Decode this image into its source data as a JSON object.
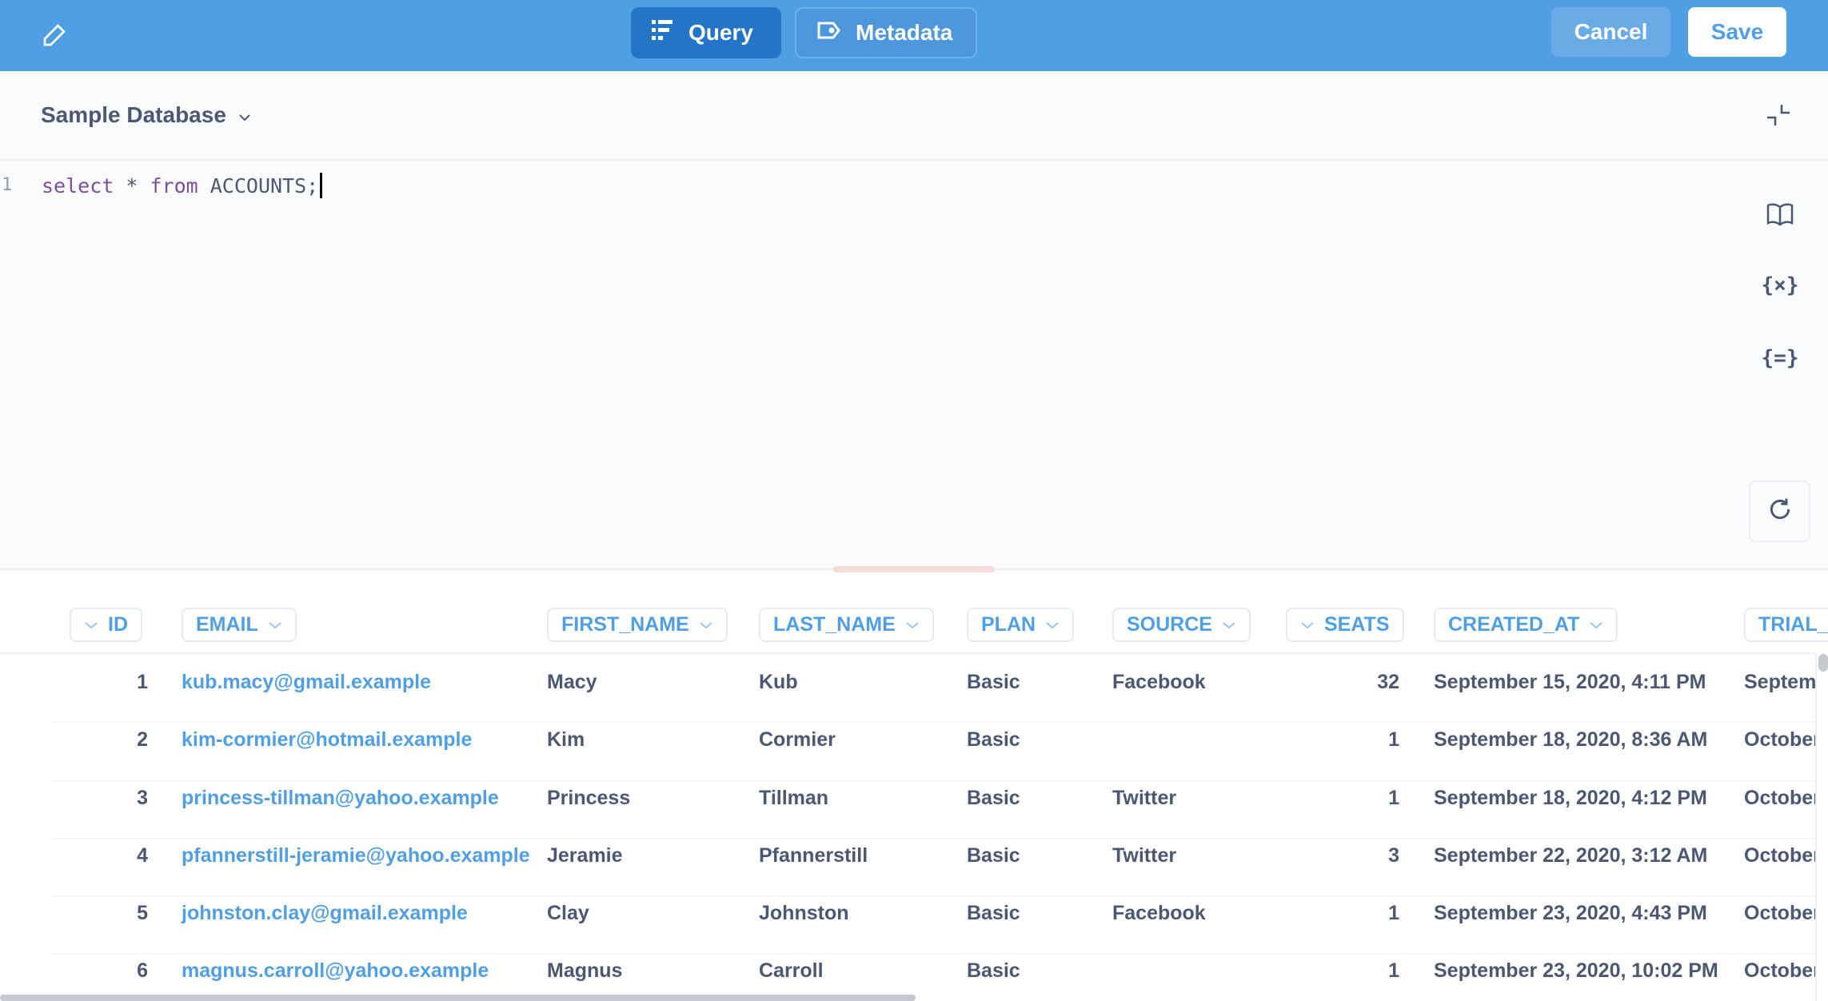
{
  "header": {
    "query_label": "Query",
    "metadata_label": "Metadata",
    "cancel_label": "Cancel",
    "save_label": "Save",
    "accent": "#509ee3"
  },
  "editor": {
    "database": "Sample Database",
    "line_number": "1",
    "code": {
      "kw1": "select",
      "star": " * ",
      "kw2": "from",
      "rest": " ACCOUNTS;"
    },
    "side_icons": [
      "book-icon",
      "variable-icon",
      "snippet-icon",
      "refresh-icon"
    ],
    "var_glyph": "{×}",
    "snippet_glyph": "{=}"
  },
  "table": {
    "columns": [
      "ID",
      "EMAIL",
      "FIRST_NAME",
      "LAST_NAME",
      "PLAN",
      "SOURCE",
      "SEATS",
      "CREATED_AT",
      "TRIAL_E"
    ],
    "rows": [
      [
        "1",
        "kub.macy@gmail.example",
        "Macy",
        "Kub",
        "Basic",
        "Facebook",
        "32",
        "September 15, 2020, 4:11 PM",
        "Septem"
      ],
      [
        "2",
        "kim-cormier@hotmail.example",
        "Kim",
        "Cormier",
        "Basic",
        "",
        "1",
        "September 18, 2020, 8:36 AM",
        "October"
      ],
      [
        "3",
        "princess-tillman@yahoo.example",
        "Princess",
        "Tillman",
        "Basic",
        "Twitter",
        "1",
        "September 18, 2020, 4:12 PM",
        "October"
      ],
      [
        "4",
        "pfannerstill-jeramie@yahoo.example",
        "Jeramie",
        "Pfannerstill",
        "Basic",
        "Twitter",
        "3",
        "September 22, 2020, 3:12 AM",
        "October"
      ],
      [
        "5",
        "johnston.clay@gmail.example",
        "Clay",
        "Johnston",
        "Basic",
        "Facebook",
        "1",
        "September 23, 2020, 4:43 PM",
        "October"
      ],
      [
        "6",
        "magnus.carroll@yahoo.example",
        "Magnus",
        "Carroll",
        "Basic",
        "",
        "1",
        "September 23, 2020, 10:02 PM",
        "October"
      ]
    ]
  }
}
